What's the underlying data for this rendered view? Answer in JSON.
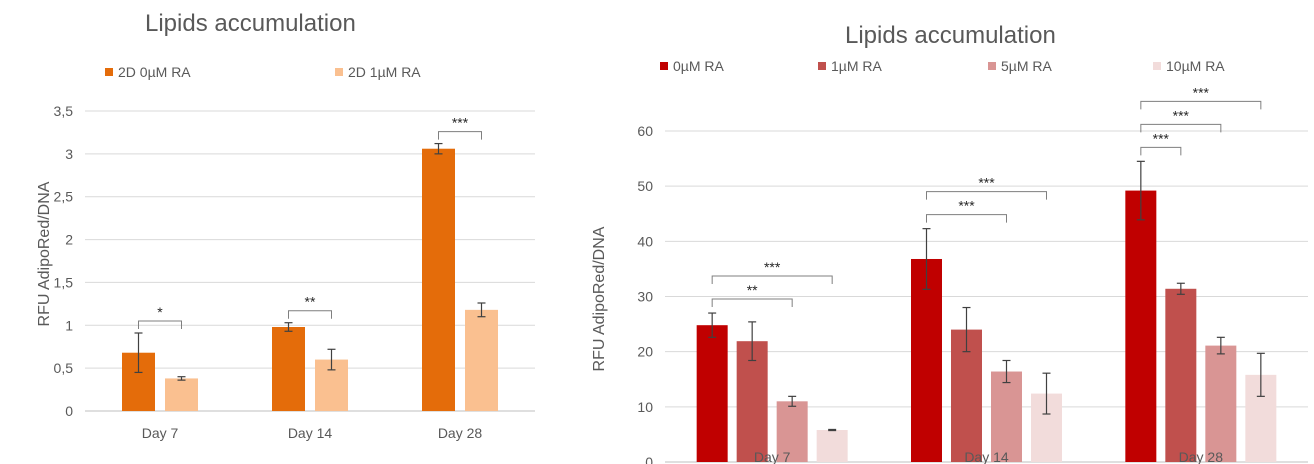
{
  "chart_data": [
    {
      "type": "bar",
      "title": "Lipids accumulation",
      "xlabel": "",
      "ylabel": "RFU AdipoRed/DNA",
      "ylim": [
        0,
        3.5
      ],
      "yticks": [
        "0",
        "0,5",
        "1",
        "1,5",
        "2",
        "2,5",
        "3",
        "3,5"
      ],
      "ytick_values": [
        0,
        0.5,
        1,
        1.5,
        2,
        2.5,
        3,
        3.5
      ],
      "categories": [
        "Day 7",
        "Day 14",
        "Day 28"
      ],
      "grid": true,
      "legend_position": "top",
      "series": [
        {
          "name": "2D 0µM RA",
          "color": "#e46c0a",
          "values": [
            0.68,
            0.98,
            3.06
          ],
          "errors": [
            0.23,
            0.05,
            0.06
          ]
        },
        {
          "name": "2D 1µM RA",
          "color": "#fac090",
          "values": [
            0.38,
            0.6,
            1.18
          ],
          "errors": [
            0.02,
            0.12,
            0.08
          ]
        }
      ],
      "annotations": [
        {
          "category": 0,
          "from": 0,
          "to": 1,
          "label": "*"
        },
        {
          "category": 1,
          "from": 0,
          "to": 1,
          "label": "**"
        },
        {
          "category": 2,
          "from": 0,
          "to": 1,
          "label": "***"
        }
      ]
    },
    {
      "type": "bar",
      "title": "Lipids accumulation",
      "xlabel": "",
      "ylabel": "RFU AdipoRed/DNA",
      "ylim": [
        0,
        60
      ],
      "yticks": [
        "0",
        "10",
        "20",
        "30",
        "40",
        "50",
        "60"
      ],
      "ytick_values": [
        0,
        10,
        20,
        30,
        40,
        50,
        60
      ],
      "categories": [
        "Day 7",
        "Day 14",
        "Day 28"
      ],
      "grid": true,
      "legend_position": "top",
      "series": [
        {
          "name": "0µM RA",
          "color": "#c00000",
          "values": [
            24.8,
            36.8,
            49.2
          ],
          "errors": [
            2.2,
            5.5,
            5.3
          ]
        },
        {
          "name": "1µM RA",
          "color": "#c0504d",
          "values": [
            21.9,
            24.0,
            31.4
          ],
          "errors": [
            3.5,
            4.0,
            1.0
          ]
        },
        {
          "name": "5µM RA",
          "color": "#d99594",
          "values": [
            11.0,
            16.4,
            21.1
          ],
          "errors": [
            0.9,
            2.0,
            1.5
          ]
        },
        {
          "name": "10µM RA",
          "color": "#f2dcdb",
          "values": [
            5.8,
            12.4,
            15.8
          ],
          "errors": [
            0.1,
            3.7,
            3.9
          ]
        }
      ],
      "annotations": [
        {
          "category": 0,
          "from": 0,
          "to": 2,
          "label": "**"
        },
        {
          "category": 0,
          "from": 0,
          "to": 3,
          "label": "***"
        },
        {
          "category": 1,
          "from": 0,
          "to": 2,
          "label": "***"
        },
        {
          "category": 1,
          "from": 0,
          "to": 3,
          "label": "***"
        },
        {
          "category": 2,
          "from": 0,
          "to": 1,
          "label": "***"
        },
        {
          "category": 2,
          "from": 0,
          "to": 2,
          "label": "***"
        },
        {
          "category": 2,
          "from": 0,
          "to": 3,
          "label": "***"
        }
      ]
    }
  ],
  "theme": {
    "text_color": "#595959",
    "grid_color": "#d9d9d9",
    "axis_color": "#bfbfbf",
    "error_color": "#404040"
  }
}
